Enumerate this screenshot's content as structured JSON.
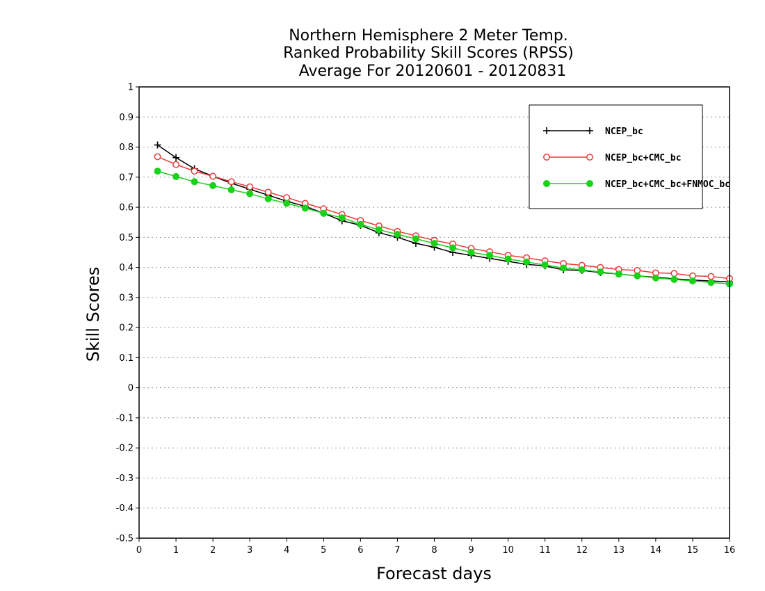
{
  "chart_data": {
    "type": "line",
    "title_lines": [
      "Northern Hemisphere 2 Meter Temp.",
      "Ranked Probability Skill Scores (RPSS)",
      "Average For 20120601 - 20120831"
    ],
    "xlabel": "Forecast days",
    "ylabel": "Skill Scores",
    "xlim": [
      0,
      16
    ],
    "ylim": [
      -0.5,
      1
    ],
    "xticks": [
      "0",
      "1",
      "2",
      "3",
      "4",
      "5",
      "6",
      "7",
      "8",
      "9",
      "10",
      "11",
      "12",
      "13",
      "14",
      "15",
      "16"
    ],
    "yticks": [
      "1",
      "0.9",
      "0.8",
      "0.7",
      "0.6",
      "0.5",
      "0.4",
      "0.3",
      "0.2",
      "0.1",
      "0",
      "-0.1",
      "-0.2",
      "-0.3",
      "-0.4",
      "-0.5"
    ],
    "grid": true,
    "legend_position": "top-right",
    "x": [
      0.5,
      1,
      1.5,
      2,
      2.5,
      3,
      3.5,
      4,
      4.5,
      5,
      5.5,
      6,
      6.5,
      7,
      7.5,
      8,
      8.5,
      9,
      9.5,
      10,
      10.5,
      11,
      11.5,
      12,
      12.5,
      13,
      13.5,
      14,
      14.5,
      15,
      15.5,
      16
    ],
    "series": [
      {
        "name": "NCEP_bc",
        "color": "#000000",
        "marker": "plus",
        "values": [
          0.807,
          0.765,
          0.728,
          0.703,
          0.68,
          0.66,
          0.64,
          0.62,
          0.603,
          0.58,
          0.555,
          0.54,
          0.515,
          0.5,
          0.48,
          0.467,
          0.45,
          0.44,
          0.43,
          0.42,
          0.41,
          0.405,
          0.392,
          0.39,
          0.383,
          0.378,
          0.372,
          0.367,
          0.362,
          0.358,
          0.355,
          0.352
        ]
      },
      {
        "name": "NCEP_bc+CMC_bc",
        "color": "#e83a3a",
        "marker": "open-circle",
        "values": [
          0.768,
          0.742,
          0.72,
          0.703,
          0.685,
          0.668,
          0.65,
          0.632,
          0.613,
          0.595,
          0.576,
          0.556,
          0.538,
          0.52,
          0.505,
          0.49,
          0.478,
          0.463,
          0.452,
          0.44,
          0.432,
          0.422,
          0.413,
          0.407,
          0.4,
          0.393,
          0.39,
          0.382,
          0.38,
          0.372,
          0.37,
          0.363
        ]
      },
      {
        "name": "NCEP_bc+CMC_bc+FNMOC_bc",
        "color": "#19d219",
        "marker": "filled-circle",
        "values": [
          0.72,
          0.702,
          0.685,
          0.672,
          0.658,
          0.645,
          0.628,
          0.613,
          0.597,
          0.58,
          0.565,
          0.543,
          0.525,
          0.51,
          0.495,
          0.48,
          0.465,
          0.45,
          0.44,
          0.428,
          0.418,
          0.408,
          0.398,
          0.392,
          0.385,
          0.378,
          0.372,
          0.365,
          0.36,
          0.355,
          0.35,
          0.345
        ]
      }
    ]
  }
}
